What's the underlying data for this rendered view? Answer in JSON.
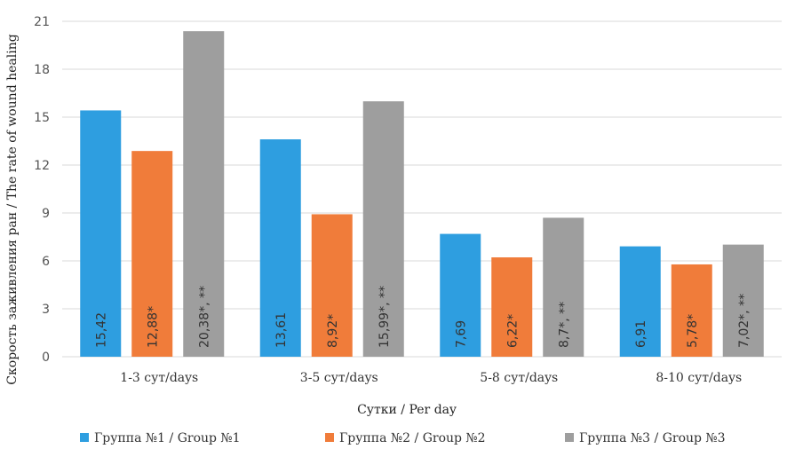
{
  "chart_data": {
    "type": "bar",
    "categories": [
      "1-3 сут/days",
      "3-5 сут/days",
      "5-8 сут/days",
      "8-10 сут/days"
    ],
    "series": [
      {
        "name": "Группа №1 / Group №1",
        "color": "#2e9ee0",
        "values": [
          15.42,
          13.61,
          7.69,
          6.91
        ],
        "labels": [
          "15,42",
          "13,61",
          "7,69",
          "6,91"
        ]
      },
      {
        "name": "Группа №2 / Group №2",
        "color": "#f07c3a",
        "values": [
          12.88,
          8.92,
          6.22,
          5.78
        ],
        "labels": [
          "12,88*",
          "8,92*",
          "6,22*",
          "5,78*"
        ]
      },
      {
        "name": "Группа №3 / Group №3",
        "color": "#9e9e9e",
        "values": [
          20.38,
          15.99,
          8.7,
          7.02
        ],
        "labels": [
          "20,38*, **",
          "15,99*, **",
          "8,7*, **",
          "7,02*, **"
        ]
      }
    ],
    "yticks": [
      "0",
      "3",
      "6",
      "9",
      "12",
      "15",
      "18",
      "21"
    ],
    "ylim": [
      0,
      21
    ],
    "xlabel": "Сутки / Per day",
    "ylabel": "Скорость заживления ран / The rate of wound healing",
    "grid": true,
    "legend_position": "bottom"
  }
}
